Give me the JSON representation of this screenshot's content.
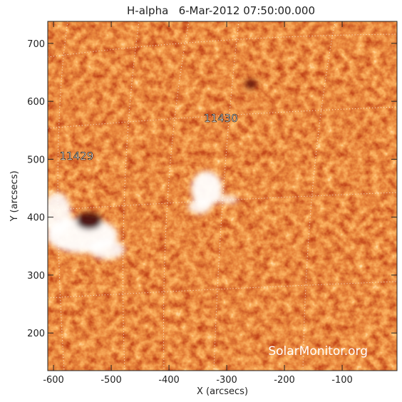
{
  "chart_data": {
    "type": "image",
    "title": "H-alpha   6-Mar-2012 07:50:00.000",
    "x_label": "X (arcsecs)",
    "y_label": "Y (arcsecs)",
    "xlim": [
      -610,
      -5
    ],
    "ylim": [
      135,
      738
    ],
    "xticks": [
      -600,
      -500,
      -400,
      -300,
      -200,
      -100
    ],
    "yticks": [
      200,
      300,
      400,
      500,
      600,
      700
    ],
    "annotations": [
      {
        "text": "11429",
        "x": -560,
        "y": 505
      },
      {
        "text": "11430",
        "x": -310,
        "y": 570
      }
    ],
    "watermark": "SolarMonitor.org"
  }
}
